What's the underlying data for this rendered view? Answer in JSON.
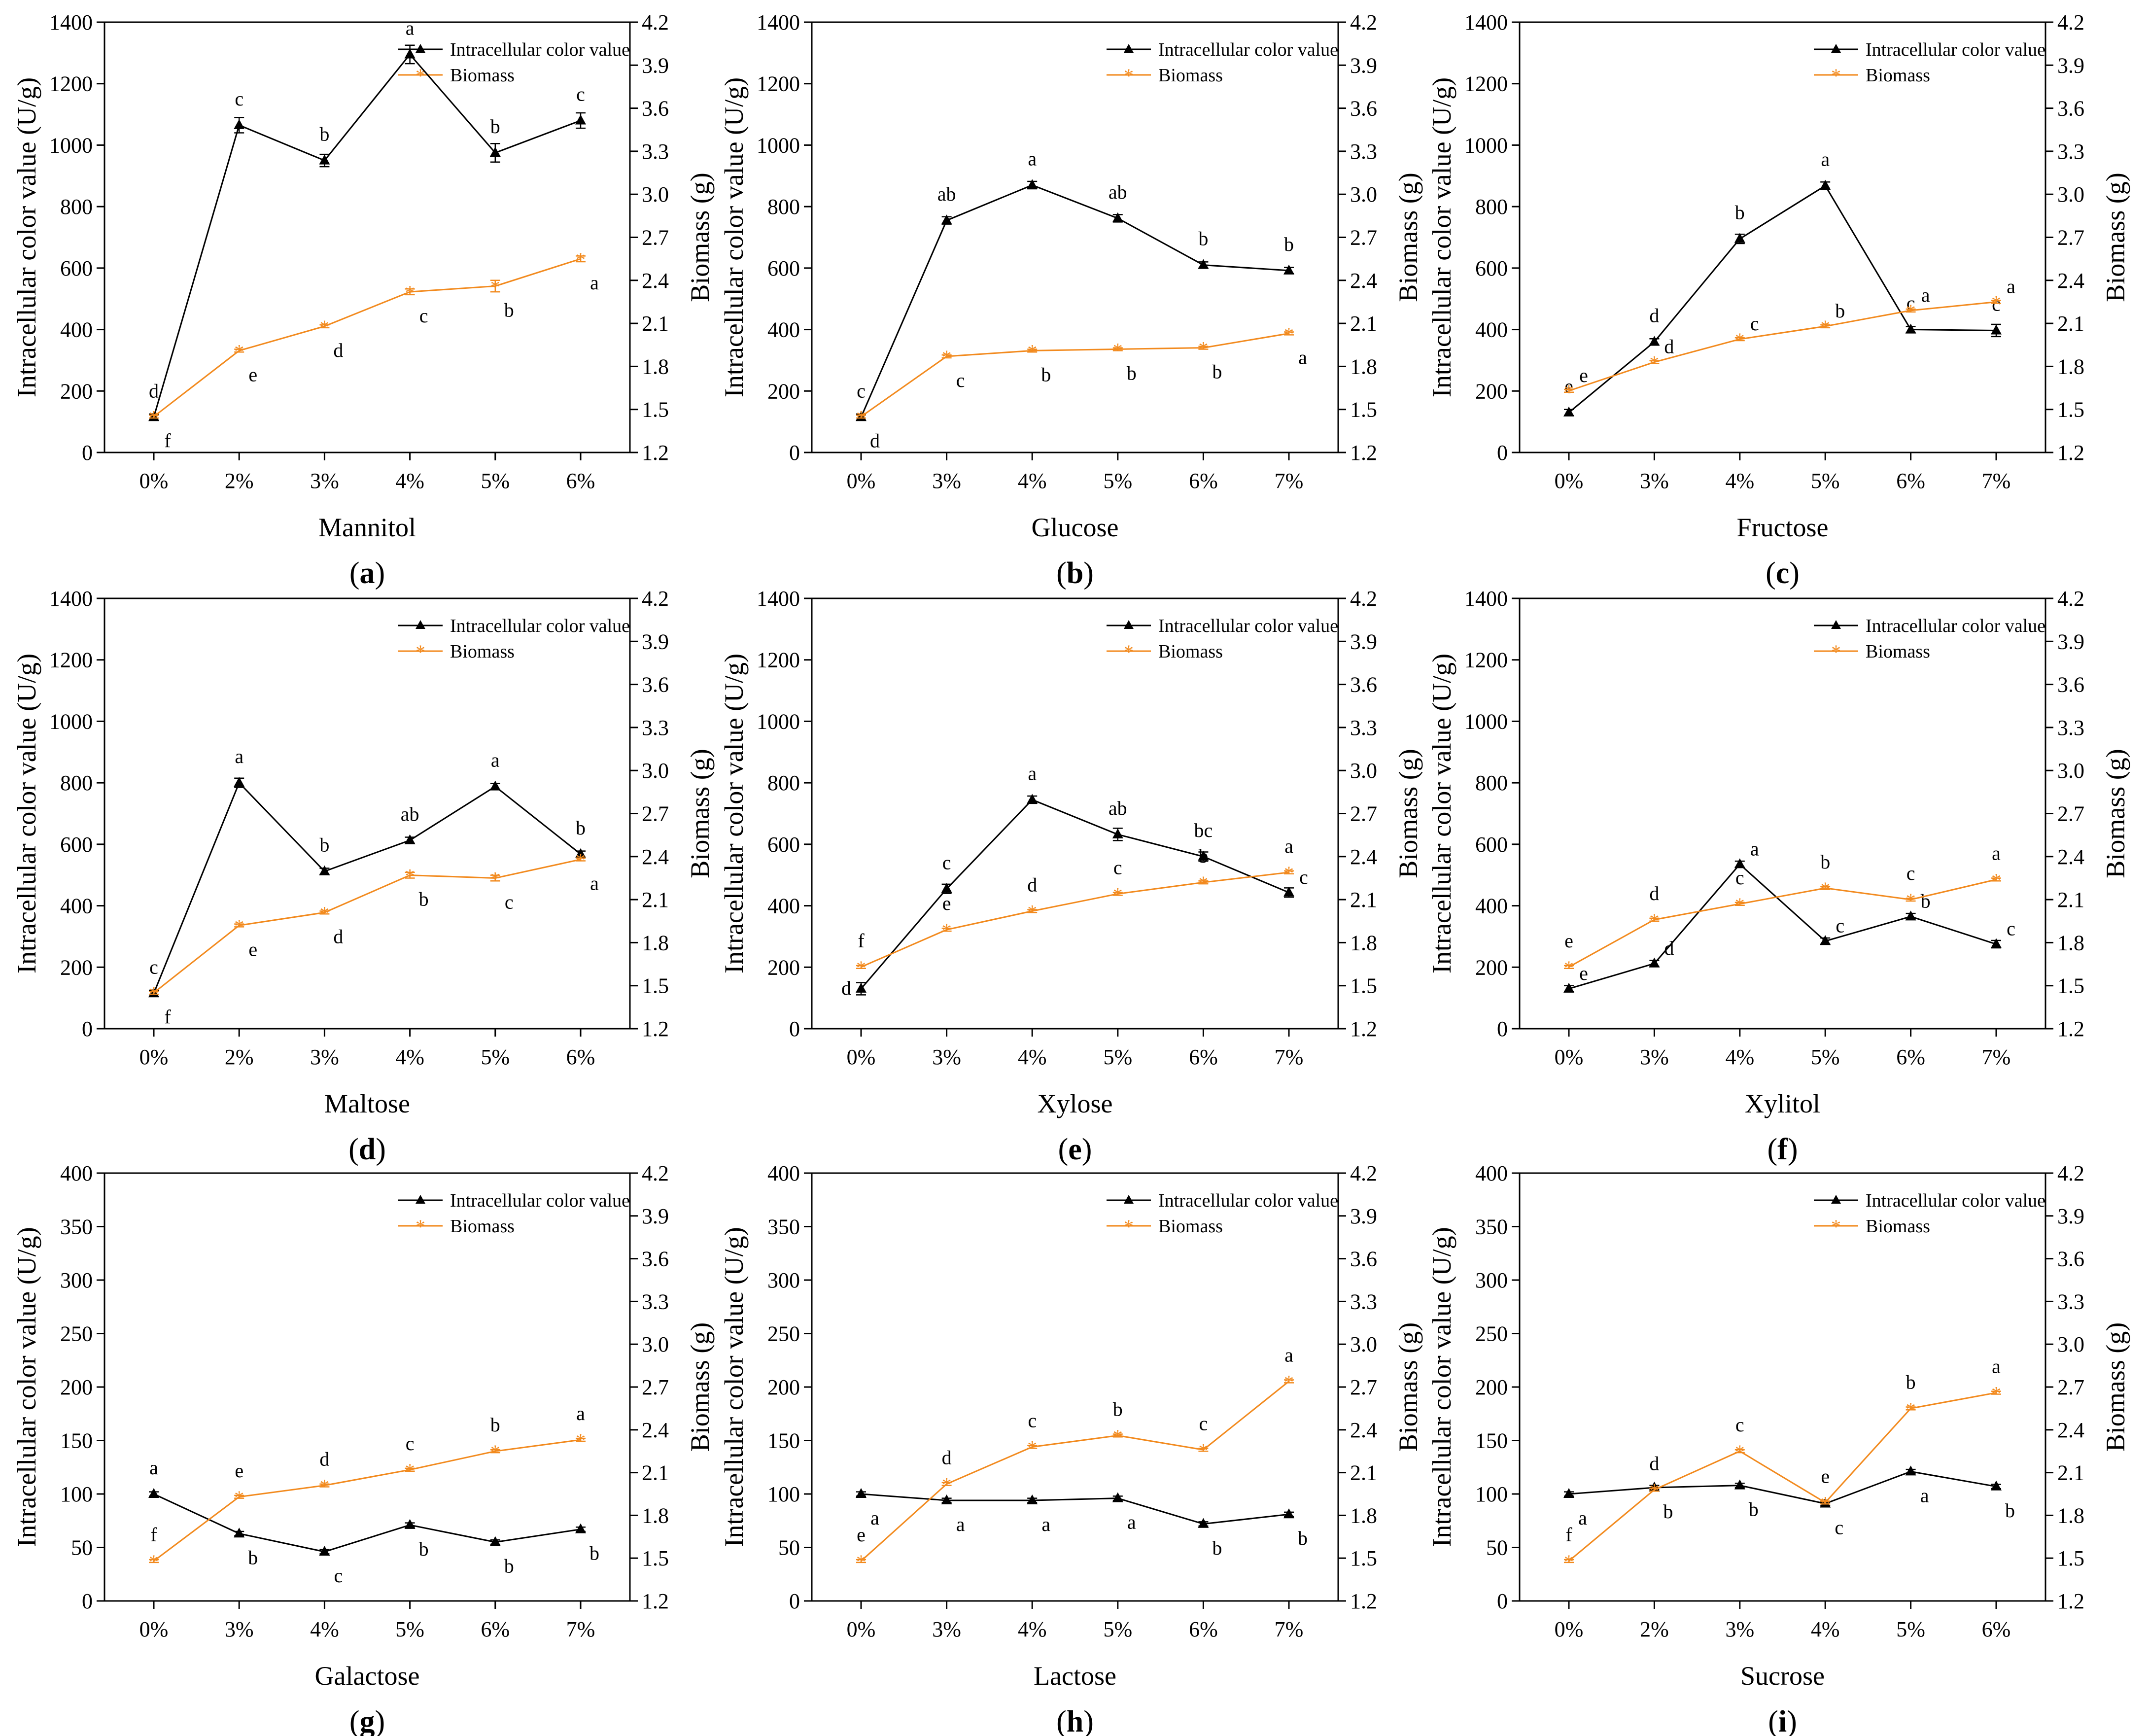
{
  "colors": {
    "intracellular": "#000000",
    "biomass": "#F28A1E"
  },
  "figure": {
    "left_ylabel": "Intracellular color value (U/g)",
    "right_ylabel": "Biomass (g)",
    "legend": {
      "intracellular": "Intracellular color value",
      "biomass": "Biomass"
    }
  },
  "chart_data": [
    {
      "type": "line",
      "panel": "a",
      "caption_letter": "a",
      "xlabel": "Mannitol",
      "categories": [
        "0%",
        "2%",
        "3%",
        "4%",
        "5%",
        "6%"
      ],
      "left_ylim": [
        0,
        1400
      ],
      "left_ticks": [
        0,
        200,
        400,
        600,
        800,
        1000,
        1200,
        1400
      ],
      "right_ylim": [
        1.2,
        4.2
      ],
      "right_ticks": [
        "1.2",
        "1.5",
        "1.8",
        "2.1",
        "2.4",
        "2.7",
        "3.0",
        "3.3",
        "3.6",
        "3.9",
        "4.2"
      ],
      "legend_position": "top-right",
      "series": [
        {
          "name": "Intracellular color value",
          "axis": "left",
          "values": [
            115,
            1065,
            950,
            1295,
            975,
            1080
          ],
          "errors": [
            10,
            25,
            20,
            30,
            30,
            25
          ],
          "labels": [
            "d",
            "c",
            "b",
            "a",
            "b",
            "c"
          ],
          "label_pos": [
            "above",
            "above",
            "above",
            "above",
            "above",
            "above"
          ]
        },
        {
          "name": "Biomass",
          "axis": "right",
          "values": [
            1.45,
            1.91,
            2.08,
            2.32,
            2.36,
            2.55
          ],
          "errors": [
            0.01,
            0.01,
            0.01,
            0.02,
            0.04,
            0.02
          ],
          "labels": [
            "f",
            "e",
            "d",
            "c",
            "b",
            "a"
          ],
          "label_pos": [
            "below",
            "below",
            "below",
            "below",
            "below",
            "below"
          ]
        }
      ]
    },
    {
      "type": "line",
      "panel": "b",
      "caption_letter": "b",
      "xlabel": "Glucose",
      "categories": [
        "0%",
        "3%",
        "4%",
        "5%",
        "6%",
        "7%"
      ],
      "left_ylim": [
        0,
        1400
      ],
      "left_ticks": [
        0,
        200,
        400,
        600,
        800,
        1000,
        1200,
        1400
      ],
      "right_ylim": [
        1.2,
        4.2
      ],
      "right_ticks": [
        "1.2",
        "1.5",
        "1.8",
        "2.1",
        "2.4",
        "2.7",
        "3.0",
        "3.3",
        "3.6",
        "3.9",
        "4.2"
      ],
      "legend_position": "top-right",
      "series": [
        {
          "name": "Intracellular color value",
          "axis": "left",
          "values": [
            115,
            755,
            870,
            762,
            610,
            592
          ],
          "errors": [
            10,
            12,
            12,
            12,
            10,
            10
          ],
          "labels": [
            "c",
            "ab",
            "a",
            "ab",
            "b",
            "b"
          ],
          "label_pos": [
            "above",
            "above",
            "above",
            "above",
            "above",
            "above"
          ]
        },
        {
          "name": "Biomass",
          "axis": "right",
          "values": [
            1.45,
            1.87,
            1.91,
            1.92,
            1.93,
            2.03
          ],
          "errors": [
            0.01,
            0.01,
            0.01,
            0.01,
            0.01,
            0.01
          ],
          "labels": [
            "d",
            "c",
            "b",
            "b",
            "b",
            "a"
          ],
          "label_pos": [
            "below",
            "below",
            "below",
            "below",
            "below",
            "below"
          ]
        }
      ]
    },
    {
      "type": "line",
      "panel": "c",
      "caption_letter": "c",
      "xlabel": "Fructose",
      "categories": [
        "0%",
        "3%",
        "4%",
        "5%",
        "6%",
        "7%"
      ],
      "left_ylim": [
        0,
        1400
      ],
      "left_ticks": [
        0,
        200,
        400,
        600,
        800,
        1000,
        1200,
        1400
      ],
      "right_ylim": [
        1.2,
        4.2
      ],
      "right_ticks": [
        "1.2",
        "1.5",
        "1.8",
        "2.1",
        "2.4",
        "2.7",
        "3.0",
        "3.3",
        "3.6",
        "3.9",
        "4.2"
      ],
      "legend_position": "top-right",
      "series": [
        {
          "name": "Intracellular color value",
          "axis": "left",
          "values": [
            130,
            360,
            695,
            868,
            400,
            397
          ],
          "errors": [
            10,
            10,
            15,
            12,
            10,
            20
          ],
          "labels": [
            "e",
            "d",
            "b",
            "a",
            "c",
            "c"
          ],
          "label_pos": [
            "above",
            "above",
            "above",
            "above",
            "above",
            "above"
          ]
        },
        {
          "name": "Biomass",
          "axis": "right",
          "values": [
            1.63,
            1.83,
            1.99,
            2.08,
            2.19,
            2.25
          ],
          "errors": [
            0.01,
            0.01,
            0.01,
            0.01,
            0.01,
            0.01
          ],
          "labels": [
            "e",
            "d",
            "c",
            "b",
            "a",
            "a"
          ],
          "label_pos": [
            "right",
            "right",
            "right",
            "right",
            "right",
            "right"
          ]
        }
      ]
    },
    {
      "type": "line",
      "panel": "d",
      "caption_letter": "d",
      "xlabel": "Maltose",
      "categories": [
        "0%",
        "2%",
        "3%",
        "4%",
        "5%",
        "6%"
      ],
      "left_ylim": [
        0,
        1400
      ],
      "left_ticks": [
        0,
        200,
        400,
        600,
        800,
        1000,
        1200,
        1400
      ],
      "right_ylim": [
        1.2,
        4.2
      ],
      "right_ticks": [
        "1.2",
        "1.5",
        "1.8",
        "2.1",
        "2.4",
        "2.7",
        "3.0",
        "3.3",
        "3.6",
        "3.9",
        "4.2"
      ],
      "legend_position": "top-right",
      "series": [
        {
          "name": "Intracellular color value",
          "axis": "left",
          "values": [
            115,
            800,
            512,
            613,
            788,
            568
          ],
          "errors": [
            10,
            15,
            10,
            10,
            10,
            10
          ],
          "labels": [
            "c",
            "a",
            "b",
            "ab",
            "a",
            "b"
          ],
          "label_pos": [
            "above",
            "above",
            "above",
            "above",
            "above",
            "above"
          ]
        },
        {
          "name": "Biomass",
          "axis": "right",
          "values": [
            1.45,
            1.92,
            2.01,
            2.27,
            2.25,
            2.38
          ],
          "errors": [
            0.01,
            0.01,
            0.01,
            0.02,
            0.02,
            0.01
          ],
          "labels": [
            "f",
            "e",
            "d",
            "b",
            "c",
            "a"
          ],
          "label_pos": [
            "below",
            "below",
            "below",
            "below",
            "below",
            "below"
          ]
        }
      ]
    },
    {
      "type": "line",
      "panel": "e",
      "caption_letter": "e",
      "xlabel": "Xylose",
      "categories": [
        "0%",
        "3%",
        "4%",
        "5%",
        "6%",
        "7%"
      ],
      "left_ylim": [
        0,
        1400
      ],
      "left_ticks": [
        0,
        200,
        400,
        600,
        800,
        1000,
        1200,
        1400
      ],
      "right_ylim": [
        1.2,
        4.2
      ],
      "right_ticks": [
        "1.2",
        "1.5",
        "1.8",
        "2.1",
        "2.4",
        "2.7",
        "3.0",
        "3.3",
        "3.6",
        "3.9",
        "4.2"
      ],
      "legend_position": "top-right",
      "series": [
        {
          "name": "Intracellular color value",
          "axis": "left",
          "values": [
            130,
            455,
            745,
            632,
            560,
            443
          ],
          "errors": [
            20,
            15,
            12,
            20,
            15,
            15
          ],
          "labels": [
            "d",
            "c",
            "a",
            "ab",
            "bc",
            "c"
          ],
          "label_pos": [
            "left",
            "above",
            "above",
            "above",
            "above",
            "right"
          ]
        },
        {
          "name": "Biomass",
          "axis": "right",
          "values": [
            1.63,
            1.89,
            2.02,
            2.14,
            2.22,
            2.29
          ],
          "errors": [
            0.01,
            0.01,
            0.01,
            0.01,
            0.01,
            0.01
          ],
          "labels": [
            "f",
            "e",
            "d",
            "c",
            "b",
            "a"
          ],
          "label_pos": [
            "above",
            "above",
            "above",
            "above",
            "above",
            "above"
          ]
        }
      ]
    },
    {
      "type": "line",
      "panel": "f",
      "caption_letter": "f",
      "xlabel": "Xylitol",
      "categories": [
        "0%",
        "3%",
        "4%",
        "5%",
        "6%",
        "7%"
      ],
      "left_ylim": [
        0,
        1400
      ],
      "left_ticks": [
        0,
        200,
        400,
        600,
        800,
        1000,
        1200,
        1400
      ],
      "right_ylim": [
        1.2,
        4.2
      ],
      "right_ticks": [
        "1.2",
        "1.5",
        "1.8",
        "2.1",
        "2.4",
        "2.7",
        "3.0",
        "3.3",
        "3.6",
        "3.9",
        "4.2"
      ],
      "legend_position": "top-right",
      "series": [
        {
          "name": "Intracellular color value",
          "axis": "left",
          "values": [
            130,
            212,
            535,
            285,
            365,
            275
          ],
          "errors": [
            10,
            10,
            10,
            10,
            10,
            12
          ],
          "labels": [
            "e",
            "d",
            "a",
            "c",
            "b",
            "c"
          ],
          "label_pos": [
            "right",
            "right",
            "right",
            "right",
            "right",
            "right"
          ]
        },
        {
          "name": "Biomass",
          "axis": "right",
          "values": [
            1.63,
            1.96,
            2.07,
            2.18,
            2.1,
            2.24
          ],
          "errors": [
            0.01,
            0.01,
            0.01,
            0.01,
            0.01,
            0.01
          ],
          "labels": [
            "e",
            "d",
            "c",
            "b",
            "c",
            "a"
          ],
          "label_pos": [
            "above",
            "above",
            "above",
            "above",
            "above",
            "above"
          ]
        }
      ]
    },
    {
      "type": "line",
      "panel": "g",
      "caption_letter": "g",
      "xlabel": "Galactose",
      "categories": [
        "0%",
        "3%",
        "4%",
        "5%",
        "6%",
        "7%"
      ],
      "left_ylim": [
        0,
        400
      ],
      "left_ticks": [
        0,
        50,
        100,
        150,
        200,
        250,
        300,
        350,
        400
      ],
      "right_ylim": [
        1.2,
        4.2
      ],
      "right_ticks": [
        "1.2",
        "1.5",
        "1.8",
        "2.1",
        "2.4",
        "2.7",
        "3.0",
        "3.3",
        "3.6",
        "3.9",
        "4.2"
      ],
      "legend_position": "top-right",
      "series": [
        {
          "name": "Intracellular color value",
          "axis": "left",
          "values": [
            100,
            63,
            46,
            71,
            55,
            67
          ],
          "errors": [
            2,
            2,
            2,
            2,
            2,
            2
          ],
          "labels": [
            "a",
            "b",
            "c",
            "b",
            "b",
            "b"
          ],
          "label_pos": [
            "above",
            "below",
            "below",
            "below",
            "below",
            "below"
          ]
        },
        {
          "name": "Biomass",
          "axis": "right",
          "values": [
            1.48,
            1.93,
            2.01,
            2.12,
            2.25,
            2.33
          ],
          "errors": [
            0.01,
            0.01,
            0.01,
            0.01,
            0.01,
            0.01
          ],
          "labels": [
            "f",
            "e",
            "d",
            "c",
            "b",
            "a"
          ],
          "label_pos": [
            "above",
            "above",
            "above",
            "above",
            "above",
            "above"
          ]
        }
      ]
    },
    {
      "type": "line",
      "panel": "h",
      "caption_letter": "h",
      "xlabel": "Lactose",
      "categories": [
        "0%",
        "3%",
        "4%",
        "5%",
        "6%",
        "7%"
      ],
      "left_ylim": [
        0,
        400
      ],
      "left_ticks": [
        0,
        50,
        100,
        150,
        200,
        250,
        300,
        350,
        400
      ],
      "right_ylim": [
        1.2,
        4.2
      ],
      "right_ticks": [
        "1.2",
        "1.5",
        "1.8",
        "2.1",
        "2.4",
        "2.7",
        "3.0",
        "3.3",
        "3.6",
        "3.9",
        "4.2"
      ],
      "legend_position": "top-right",
      "series": [
        {
          "name": "Intracellular color value",
          "axis": "left",
          "values": [
            100,
            94,
            94,
            96,
            72,
            81
          ],
          "errors": [
            2,
            2,
            2,
            2,
            2,
            2
          ],
          "labels": [
            "a",
            "a",
            "a",
            "a",
            "b",
            "b"
          ],
          "label_pos": [
            "below",
            "below",
            "below",
            "below",
            "below",
            "below"
          ]
        },
        {
          "name": "Biomass",
          "axis": "right",
          "values": [
            1.48,
            2.02,
            2.28,
            2.36,
            2.26,
            2.74
          ],
          "errors": [
            0.01,
            0.01,
            0.01,
            0.01,
            0.01,
            0.01
          ],
          "labels": [
            "e",
            "d",
            "c",
            "b",
            "c",
            "a"
          ],
          "label_pos": [
            "above",
            "above",
            "above",
            "above",
            "above",
            "above"
          ]
        }
      ]
    },
    {
      "type": "line",
      "panel": "i",
      "caption_letter": "i",
      "xlabel": "Sucrose",
      "categories": [
        "0%",
        "2%",
        "3%",
        "4%",
        "5%",
        "6%"
      ],
      "left_ylim": [
        0,
        400
      ],
      "left_ticks": [
        0,
        50,
        100,
        150,
        200,
        250,
        300,
        350,
        400
      ],
      "right_ylim": [
        1.2,
        4.2
      ],
      "right_ticks": [
        "1.2",
        "1.5",
        "1.8",
        "2.1",
        "2.4",
        "2.7",
        "3.0",
        "3.3",
        "3.6",
        "3.9",
        "4.2"
      ],
      "legend_position": "top-right",
      "series": [
        {
          "name": "Intracellular color value",
          "axis": "left",
          "values": [
            100,
            106,
            108,
            91,
            121,
            107
          ],
          "errors": [
            2,
            2,
            2,
            2,
            2,
            2
          ],
          "labels": [
            "a",
            "b",
            "b",
            "c",
            "a",
            "b"
          ],
          "label_pos": [
            "below",
            "below",
            "below",
            "below",
            "below",
            "below"
          ]
        },
        {
          "name": "Biomass",
          "axis": "right",
          "values": [
            1.48,
            1.98,
            2.25,
            1.89,
            2.55,
            2.66
          ],
          "errors": [
            0.01,
            0.01,
            0.01,
            0.01,
            0.01,
            0.01
          ],
          "labels": [
            "f",
            "d",
            "c",
            "e",
            "b",
            "a"
          ],
          "label_pos": [
            "above",
            "above",
            "above",
            "above",
            "above",
            "above"
          ]
        }
      ]
    }
  ]
}
